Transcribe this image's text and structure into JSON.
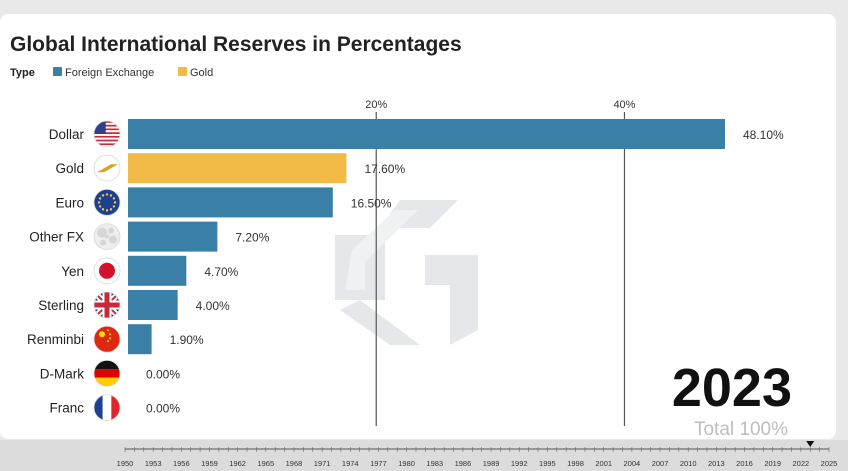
{
  "chart_data": {
    "type": "bar",
    "orientation": "horizontal",
    "title": "Global International Reserves in Percentages",
    "legend": {
      "title": "Type",
      "placement": "top-left",
      "items": [
        {
          "name": "Foreign Exchange",
          "color": "#3a7fa6"
        },
        {
          "name": "Gold",
          "color": "#f2bb47"
        }
      ]
    },
    "categories": [
      "Dollar",
      "Gold",
      "Euro",
      "Other FX",
      "Yen",
      "Sterling",
      "Renminbi",
      "D-Mark",
      "Franc"
    ],
    "values": [
      48.1,
      17.6,
      16.5,
      7.2,
      4.7,
      4.0,
      1.9,
      0.0,
      0.0
    ],
    "value_labels": [
      "48.10%",
      "17.60%",
      "16.50%",
      "7.20%",
      "4.70%",
      "4.00%",
      "1.90%",
      "0.00%",
      "0.00%"
    ],
    "bar_types": [
      "Foreign Exchange",
      "Gold",
      "Foreign Exchange",
      "Foreign Exchange",
      "Foreign Exchange",
      "Foreign Exchange",
      "Foreign Exchange",
      "Foreign Exchange",
      "Foreign Exchange"
    ],
    "icons": [
      "us-flag-icon",
      "gold-bar-icon",
      "eu-flag-icon",
      "globe-icon",
      "japan-flag-icon",
      "uk-flag-icon",
      "china-flag-icon",
      "germany-flag-icon",
      "france-flag-icon"
    ],
    "xaxis": {
      "ticks": [
        20,
        40
      ],
      "tick_labels": [
        "20%",
        "40%"
      ],
      "position": "top",
      "range": [
        0,
        48.1
      ],
      "grid": true
    },
    "year": "2023",
    "total_label": "Total 100%"
  },
  "timeline": {
    "years": [
      "1950",
      "1953",
      "1956",
      "1959",
      "1962",
      "1965",
      "1968",
      "1971",
      "1974",
      "1977",
      "1980",
      "1983",
      "1986",
      "1989",
      "1992",
      "1995",
      "1998",
      "2001",
      "2004",
      "2007",
      "2010",
      "2013",
      "2016",
      "2019",
      "2022",
      "2025"
    ],
    "current": "2023"
  }
}
